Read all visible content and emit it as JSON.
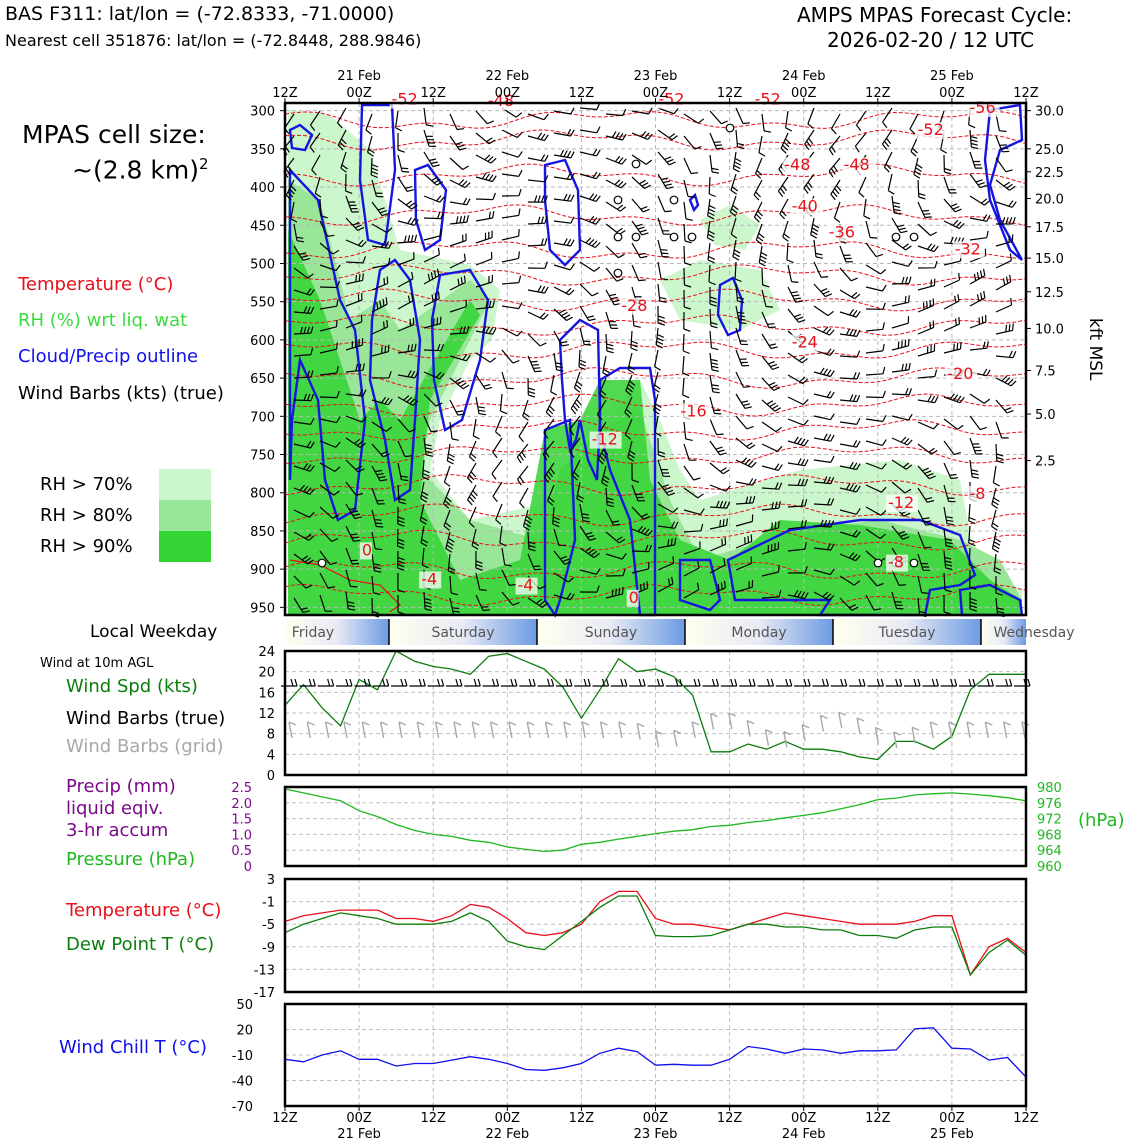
{
  "header": {
    "station_line": "BAS F311: lat/lon = (-72.8333, -71.0000)",
    "cell_line": "Nearest cell 351876: lat/lon = (-72.8448, 288.9846)",
    "cycle_label": "AMPS MPAS Forecast Cycle:",
    "cycle_value": "2026-02-20 / 12 UTC"
  },
  "sidebar": {
    "cell_size_label": "MPAS cell size:",
    "cell_size_value": "~(2.8 km)",
    "cell_size_exp": "2",
    "legend": [
      {
        "text": "Temperature (°C)",
        "color": "#e8101a"
      },
      {
        "text": "RH (%) wrt liq. wat",
        "color": "#3bdc3b"
      },
      {
        "text": "Cloud/Precip outline",
        "color": "#1010ee"
      },
      {
        "text": "Wind Barbs (kts) (true)",
        "color": "#000000"
      }
    ],
    "rh_legend": [
      {
        "text": "RH > 70%",
        "color": "#ccf7cc"
      },
      {
        "text": "RH > 80%",
        "color": "#99e699"
      },
      {
        "text": "RH > 90%",
        "color": "#33d433"
      }
    ],
    "weekday_label": "Local Weekday",
    "wind10m_label": "Wind at 10m AGL",
    "wind_legend": [
      {
        "text": "Wind Spd (kts)",
        "color": "#0b7d0b"
      },
      {
        "text": "Wind Barbs (true)",
        "color": "#000000"
      },
      {
        "text": "Wind Barbs (grid)",
        "color": "#a8a8a8"
      }
    ],
    "precip_legend": [
      {
        "text": "Precip (mm)",
        "color": "#7a0a8a"
      },
      {
        "text": "liquid eqiv.",
        "color": "#7a0a8a"
      },
      {
        "text": "3-hr accum",
        "color": "#7a0a8a"
      },
      {
        "text": "Pressure (hPa)",
        "color": "#1fb81f"
      }
    ],
    "temp_legend": [
      {
        "text": "Temperature (°C)",
        "color": "#e8101a"
      },
      {
        "text": "Dew Point T (°C)",
        "color": "#0b7d0b"
      }
    ],
    "windchill_legend": {
      "text": "Wind Chill T (°C)",
      "color": "#1010ee"
    }
  },
  "weekdays": [
    "Friday",
    "Saturday",
    "Sunday",
    "Monday",
    "Tuesday",
    "Wednesday"
  ],
  "time_axis": {
    "ticks": [
      "12Z",
      "00Z",
      "12Z",
      "00Z",
      "12Z",
      "00Z",
      "12Z",
      "00Z",
      "12Z",
      "00Z",
      "12Z"
    ],
    "dates": [
      {
        "index": 1,
        "label": "21 Feb"
      },
      {
        "index": 3,
        "label": "22 Feb"
      },
      {
        "index": 5,
        "label": "23 Feb"
      },
      {
        "index": 7,
        "label": "24 Feb"
      },
      {
        "index": 9,
        "label": "25 Feb"
      }
    ]
  },
  "chart_data": [
    {
      "type": "heatmap",
      "title": "",
      "ylabel_right": "kft MSL",
      "pressure_ticks": [
        300,
        350,
        400,
        450,
        500,
        550,
        600,
        650,
        700,
        750,
        800,
        850,
        900,
        950
      ],
      "ylim_hpa": [
        960,
        290
      ],
      "height_ticks": [
        {
          "p": 300,
          "label": "30.0"
        },
        {
          "p": 350,
          "label": "25.0"
        },
        {
          "p": 380,
          "label": "22.5"
        },
        {
          "p": 415,
          "label": "20.0"
        },
        {
          "p": 452,
          "label": "17.5"
        },
        {
          "p": 493,
          "label": "15.0"
        },
        {
          "p": 537,
          "label": "12.5"
        },
        {
          "p": 585,
          "label": "10.0"
        },
        {
          "p": 640,
          "label": "7.5"
        },
        {
          "p": 697,
          "label": "5.0"
        },
        {
          "p": 758,
          "label": "2.5"
        }
      ],
      "temperature_labels": [
        {
          "text": "-52",
          "t": 1.6,
          "p": 292
        },
        {
          "text": "-48",
          "t": 2.9,
          "p": 294
        },
        {
          "text": "-52",
          "t": 5.2,
          "p": 292
        },
        {
          "text": "-52",
          "t": 6.5,
          "p": 292
        },
        {
          "text": "-56",
          "t": 9.4,
          "p": 303
        },
        {
          "text": "-52",
          "t": 8.7,
          "p": 332
        },
        {
          "text": "-48",
          "t": 7.7,
          "p": 378
        },
        {
          "text": "-48",
          "t": 6.9,
          "p": 378
        },
        {
          "text": "-40",
          "t": 7.0,
          "p": 432
        },
        {
          "text": "-36",
          "t": 7.5,
          "p": 466
        },
        {
          "text": "-32",
          "t": 9.2,
          "p": 488
        },
        {
          "text": "-28",
          "t": 4.7,
          "p": 562
        },
        {
          "text": "-24",
          "t": 7.0,
          "p": 610
        },
        {
          "text": "-20",
          "t": 9.1,
          "p": 651
        },
        {
          "text": "-16",
          "t": 5.5,
          "p": 700
        },
        {
          "text": "-12",
          "t": 4.3,
          "p": 737
        },
        {
          "text": "-8",
          "t": 9.4,
          "p": 808
        },
        {
          "text": "-12",
          "t": 8.3,
          "p": 820
        },
        {
          "text": "-8",
          "t": 8.3,
          "p": 898
        },
        {
          "text": "0",
          "t": 1.2,
          "p": 882
        },
        {
          "text": "-4",
          "t": 2.0,
          "p": 920
        },
        {
          "text": "-4",
          "t": 3.3,
          "p": 928
        },
        {
          "text": "0",
          "t": 4.8,
          "p": 944
        }
      ]
    },
    {
      "type": "line",
      "title": "",
      "ylim": [
        0,
        24
      ],
      "yticks": [
        0,
        4,
        8,
        12,
        16,
        20,
        24
      ],
      "series": [
        {
          "name": "Wind Spd (kts)",
          "color": "#0b7d0b",
          "x": [
            0,
            0.25,
            0.5,
            0.75,
            1.0,
            1.25,
            1.5,
            1.75,
            2.0,
            2.25,
            2.5,
            2.75,
            3.0,
            3.25,
            3.5,
            3.75,
            4.0,
            4.25,
            4.5,
            4.75,
            5.0,
            5.25,
            5.5,
            5.75,
            6.0,
            6.25,
            6.5,
            6.75,
            7.0,
            7.25,
            7.5,
            7.75,
            8.0,
            8.25,
            8.5,
            8.75,
            9.0,
            9.25,
            9.5,
            9.75,
            10.0
          ],
          "y": [
            13.5,
            17.5,
            13,
            9.5,
            18.5,
            16.5,
            24,
            22,
            21,
            20.5,
            19.5,
            23,
            23.5,
            22,
            20.5,
            17,
            11,
            16.5,
            22.5,
            20,
            20.5,
            19,
            15.5,
            4.5,
            4.5,
            6,
            5,
            6.5,
            5,
            5,
            4.5,
            3.5,
            3,
            6.5,
            6.5,
            5,
            7.5,
            16.5,
            19.5,
            19.5,
            19.5
          ]
        }
      ]
    },
    {
      "type": "line",
      "title": "",
      "ylim_left": [
        0,
        2.5
      ],
      "yticks_left": [
        "0",
        "0.5",
        "1.0",
        "1.5",
        "2.0",
        "2.5"
      ],
      "ylim_right": [
        960,
        980
      ],
      "yticks_right": [
        "960",
        "964",
        "968",
        "972",
        "976",
        "980"
      ],
      "right_unit": "(hPa)",
      "series": [
        {
          "name": "Pressure (hPa)",
          "color": "#1fb81f",
          "x": [
            0,
            0.25,
            0.5,
            0.75,
            1.0,
            1.25,
            1.5,
            1.75,
            2.0,
            2.25,
            2.5,
            2.75,
            3.0,
            3.25,
            3.5,
            3.75,
            4.0,
            4.25,
            4.5,
            4.75,
            5.0,
            5.25,
            5.5,
            5.75,
            6.0,
            6.25,
            6.5,
            6.75,
            7.0,
            7.25,
            7.5,
            7.75,
            8.0,
            8.25,
            8.5,
            8.75,
            9.0,
            9.25,
            9.5,
            9.75,
            10.0
          ],
          "y": [
            979.5,
            978.5,
            977.5,
            976.5,
            974,
            972.5,
            970.5,
            969,
            968,
            967.5,
            966.5,
            966,
            964.8,
            964.2,
            963.7,
            964,
            965.5,
            966,
            966.8,
            967.5,
            968.2,
            968.8,
            969.2,
            970,
            970.3,
            971,
            971.5,
            972.2,
            972.8,
            973.5,
            974.5,
            975.5,
            976.8,
            977.2,
            978,
            978.3,
            978.5,
            978.2,
            977.8,
            977.3,
            976.5
          ]
        }
      ]
    },
    {
      "type": "line",
      "title": "",
      "ylim": [
        -17,
        3
      ],
      "yticks": [
        -17,
        -13,
        -9,
        -5,
        -1,
        3
      ],
      "series": [
        {
          "name": "Temperature (°C)",
          "color": "#e8101a",
          "x": [
            0,
            0.25,
            0.5,
            0.75,
            1.0,
            1.25,
            1.5,
            1.75,
            2.0,
            2.25,
            2.5,
            2.75,
            3.0,
            3.25,
            3.5,
            3.75,
            4.0,
            4.25,
            4.5,
            4.75,
            5.0,
            5.25,
            5.5,
            5.75,
            6.0,
            6.25,
            6.5,
            6.75,
            7.0,
            7.25,
            7.5,
            7.75,
            8.0,
            8.25,
            8.5,
            8.75,
            9.0,
            9.25,
            9.5,
            9.75,
            10.0
          ],
          "y": [
            -4.5,
            -3.5,
            -3,
            -2.5,
            -2.5,
            -2.5,
            -4,
            -4,
            -4.5,
            -3.5,
            -1.5,
            -2,
            -4,
            -6.5,
            -7,
            -6.5,
            -5,
            -1,
            0.8,
            0.8,
            -4,
            -5,
            -5,
            -5.5,
            -6,
            -5,
            -4,
            -3,
            -3.5,
            -4,
            -4.5,
            -5,
            -5,
            -5,
            -4.5,
            -3.5,
            -3.5,
            -14,
            -9,
            -7.5,
            -10
          ]
        },
        {
          "name": "Dew Point T (°C)",
          "color": "#0b7d0b",
          "x": [
            0,
            0.25,
            0.5,
            0.75,
            1.0,
            1.25,
            1.5,
            1.75,
            2.0,
            2.25,
            2.5,
            2.75,
            3.0,
            3.25,
            3.5,
            3.75,
            4.0,
            4.25,
            4.5,
            4.75,
            5.0,
            5.25,
            5.5,
            5.75,
            6.0,
            6.25,
            6.5,
            6.75,
            7.0,
            7.25,
            7.5,
            7.75,
            8.0,
            8.25,
            8.5,
            8.75,
            9.0,
            9.25,
            9.5,
            9.75,
            10.0
          ],
          "y": [
            -6.5,
            -5,
            -4,
            -3,
            -3.5,
            -4,
            -5,
            -5,
            -5,
            -4.5,
            -3,
            -4.5,
            -8,
            -9,
            -9.5,
            -7,
            -4.5,
            -2,
            0,
            0,
            -7,
            -7.2,
            -7.2,
            -7,
            -6,
            -5,
            -5,
            -5.5,
            -5.5,
            -6,
            -6,
            -7,
            -7,
            -7.5,
            -6,
            -5.5,
            -5.5,
            -14,
            -10,
            -7.8,
            -10.5
          ]
        }
      ]
    },
    {
      "type": "line",
      "title": "",
      "ylim": [
        -70,
        50
      ],
      "yticks": [
        -70,
        -40,
        -10,
        20,
        50
      ],
      "series": [
        {
          "name": "Wind Chill T (°C)",
          "color": "#1010ee",
          "x": [
            0,
            0.25,
            0.5,
            0.75,
            1.0,
            1.25,
            1.5,
            1.75,
            2.0,
            2.25,
            2.5,
            2.75,
            3.0,
            3.25,
            3.5,
            3.75,
            4.0,
            4.25,
            4.5,
            4.75,
            5.0,
            5.25,
            5.5,
            5.75,
            6.0,
            6.25,
            6.5,
            6.75,
            7.0,
            7.25,
            7.5,
            7.75,
            8.0,
            8.25,
            8.5,
            8.75,
            9.0,
            9.25,
            9.5,
            9.75,
            10.0
          ],
          "y": [
            -15,
            -18,
            -10,
            -5,
            -15,
            -15,
            -23,
            -20,
            -20,
            -16,
            -12,
            -15,
            -20,
            -27,
            -28,
            -25,
            -20,
            -8,
            -2,
            -6,
            -22,
            -21,
            -22,
            -22,
            -15,
            0,
            -3,
            -8,
            -3,
            -4,
            -8,
            -5,
            -5,
            -4,
            21,
            22,
            -2,
            -3,
            -16,
            -13,
            -36
          ]
        }
      ]
    }
  ]
}
